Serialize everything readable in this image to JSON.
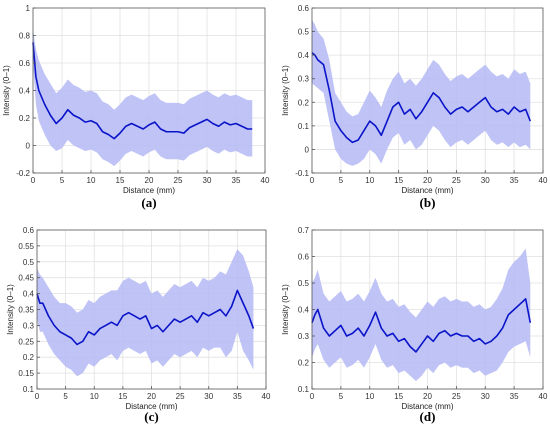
{
  "chart_data": [
    {
      "panel": "(a)",
      "type": "line",
      "xlabel": "Distance (mm)",
      "ylabel": "Intensity (0–1)",
      "xlim": [
        0,
        40
      ],
      "ylim": [
        -0.2,
        1
      ],
      "xticks": [
        "0",
        "5",
        "10",
        "15",
        "20",
        "25",
        "30",
        "35",
        "40"
      ],
      "yticks": [
        "-0.2",
        "0",
        "0.2",
        "0.4",
        "0.6",
        "0.8",
        "1"
      ],
      "grid": true,
      "x": [
        0,
        0.5,
        1,
        2,
        3,
        4,
        5,
        6,
        7,
        8,
        9,
        10,
        11,
        12,
        13,
        14,
        15,
        16,
        17,
        18,
        19,
        20,
        21,
        22,
        23,
        24,
        25,
        26,
        27,
        28,
        29,
        30,
        31,
        32,
        33,
        34,
        35,
        36,
        37,
        37.8
      ],
      "mean": [
        0.75,
        0.5,
        0.4,
        0.3,
        0.22,
        0.16,
        0.2,
        0.26,
        0.22,
        0.2,
        0.17,
        0.18,
        0.16,
        0.1,
        0.08,
        0.05,
        0.09,
        0.14,
        0.16,
        0.14,
        0.12,
        0.15,
        0.17,
        0.12,
        0.1,
        0.1,
        0.1,
        0.09,
        0.13,
        0.15,
        0.17,
        0.19,
        0.16,
        0.14,
        0.17,
        0.15,
        0.16,
        0.14,
        0.12,
        0.12
      ],
      "upper": [
        0.85,
        0.7,
        0.62,
        0.52,
        0.45,
        0.38,
        0.42,
        0.48,
        0.44,
        0.42,
        0.39,
        0.4,
        0.38,
        0.32,
        0.3,
        0.26,
        0.3,
        0.35,
        0.37,
        0.35,
        0.33,
        0.36,
        0.38,
        0.33,
        0.31,
        0.31,
        0.31,
        0.3,
        0.34,
        0.36,
        0.38,
        0.4,
        0.37,
        0.35,
        0.38,
        0.36,
        0.37,
        0.35,
        0.33,
        0.33
      ],
      "lower": [
        0.6,
        0.3,
        0.18,
        0.08,
        0.0,
        -0.04,
        -0.02,
        0.04,
        0.0,
        -0.02,
        -0.04,
        -0.03,
        -0.05,
        -0.1,
        -0.12,
        -0.15,
        -0.11,
        -0.06,
        -0.04,
        -0.06,
        -0.08,
        -0.05,
        -0.03,
        -0.08,
        -0.1,
        -0.1,
        -0.1,
        -0.11,
        -0.07,
        -0.05,
        -0.03,
        -0.01,
        -0.04,
        -0.06,
        -0.03,
        -0.05,
        -0.04,
        -0.06,
        -0.08,
        -0.08
      ]
    },
    {
      "panel": "(b)",
      "type": "line",
      "xlabel": "Distance (mm)",
      "ylabel": "Intensity (0–1)",
      "xlim": [
        0,
        40
      ],
      "ylim": [
        -0.1,
        0.6
      ],
      "xticks": [
        "0",
        "5",
        "10",
        "15",
        "20",
        "25",
        "30",
        "35",
        "40"
      ],
      "yticks": [
        "-0.1",
        "0",
        "0.1",
        "0.2",
        "0.3",
        "0.4",
        "0.5",
        "0.6"
      ],
      "grid": true,
      "x": [
        0,
        0.5,
        1,
        2,
        3,
        4,
        5,
        6,
        7,
        8,
        9,
        10,
        11,
        12,
        13,
        14,
        15,
        16,
        17,
        18,
        19,
        20,
        21,
        22,
        23,
        24,
        25,
        26,
        27,
        28,
        29,
        30,
        31,
        32,
        33,
        34,
        35,
        36,
        37,
        37.8
      ],
      "mean": [
        0.41,
        0.4,
        0.38,
        0.36,
        0.25,
        0.12,
        0.08,
        0.05,
        0.03,
        0.04,
        0.08,
        0.12,
        0.1,
        0.06,
        0.12,
        0.18,
        0.2,
        0.15,
        0.17,
        0.13,
        0.16,
        0.2,
        0.24,
        0.22,
        0.18,
        0.15,
        0.17,
        0.18,
        0.16,
        0.18,
        0.2,
        0.22,
        0.18,
        0.16,
        0.17,
        0.15,
        0.18,
        0.16,
        0.17,
        0.12
      ],
      "upper": [
        0.55,
        0.53,
        0.5,
        0.47,
        0.38,
        0.24,
        0.2,
        0.16,
        0.14,
        0.15,
        0.2,
        0.25,
        0.22,
        0.18,
        0.25,
        0.3,
        0.33,
        0.28,
        0.3,
        0.27,
        0.3,
        0.34,
        0.38,
        0.36,
        0.32,
        0.29,
        0.31,
        0.32,
        0.3,
        0.32,
        0.34,
        0.36,
        0.33,
        0.31,
        0.32,
        0.3,
        0.34,
        0.32,
        0.33,
        0.28
      ],
      "lower": [
        0.28,
        0.27,
        0.26,
        0.24,
        0.12,
        0.0,
        -0.04,
        -0.06,
        -0.07,
        -0.06,
        -0.04,
        0.0,
        -0.02,
        -0.06,
        0.0,
        0.05,
        0.07,
        0.02,
        0.04,
        0.0,
        0.02,
        0.06,
        0.1,
        0.08,
        0.04,
        0.01,
        0.03,
        0.04,
        0.02,
        0.04,
        0.06,
        0.08,
        0.04,
        0.02,
        0.03,
        0.01,
        0.03,
        0.01,
        0.02,
        0.0
      ]
    },
    {
      "panel": "(c)",
      "type": "line",
      "xlabel": "Distance (mm)",
      "ylabel": "Intensity (0–1)",
      "xlim": [
        0,
        40
      ],
      "ylim": [
        0.1,
        0.6
      ],
      "xticks": [
        "0",
        "5",
        "10",
        "15",
        "20",
        "25",
        "30",
        "35",
        "40"
      ],
      "yticks": [
        "0.1",
        "0.15",
        "0.2",
        "0.25",
        "0.3",
        "0.35",
        "0.4",
        "0.45",
        "0.5",
        "0.55",
        "0.6"
      ],
      "grid": true,
      "x": [
        0,
        0.5,
        1,
        2,
        3,
        4,
        5,
        6,
        7,
        8,
        9,
        10,
        11,
        12,
        13,
        14,
        15,
        16,
        17,
        18,
        19,
        20,
        21,
        22,
        23,
        24,
        25,
        26,
        27,
        28,
        29,
        30,
        31,
        32,
        33,
        34,
        35,
        36,
        37,
        37.8
      ],
      "mean": [
        0.4,
        0.37,
        0.37,
        0.33,
        0.3,
        0.28,
        0.27,
        0.26,
        0.24,
        0.25,
        0.28,
        0.27,
        0.29,
        0.3,
        0.31,
        0.3,
        0.33,
        0.34,
        0.33,
        0.32,
        0.33,
        0.29,
        0.3,
        0.28,
        0.3,
        0.32,
        0.31,
        0.32,
        0.33,
        0.31,
        0.34,
        0.33,
        0.34,
        0.35,
        0.33,
        0.36,
        0.41,
        0.37,
        0.33,
        0.29
      ],
      "upper": [
        0.48,
        0.46,
        0.45,
        0.42,
        0.39,
        0.37,
        0.37,
        0.36,
        0.34,
        0.35,
        0.38,
        0.37,
        0.39,
        0.4,
        0.41,
        0.41,
        0.44,
        0.45,
        0.44,
        0.43,
        0.44,
        0.4,
        0.41,
        0.39,
        0.41,
        0.43,
        0.42,
        0.43,
        0.44,
        0.42,
        0.45,
        0.44,
        0.45,
        0.47,
        0.46,
        0.5,
        0.54,
        0.52,
        0.47,
        0.42
      ],
      "lower": [
        0.32,
        0.28,
        0.28,
        0.24,
        0.21,
        0.19,
        0.17,
        0.16,
        0.14,
        0.15,
        0.18,
        0.17,
        0.19,
        0.2,
        0.21,
        0.19,
        0.22,
        0.23,
        0.22,
        0.21,
        0.22,
        0.18,
        0.19,
        0.17,
        0.19,
        0.21,
        0.2,
        0.21,
        0.22,
        0.2,
        0.23,
        0.22,
        0.23,
        0.23,
        0.2,
        0.22,
        0.28,
        0.22,
        0.19,
        0.16
      ]
    },
    {
      "panel": "(d)",
      "type": "line",
      "xlabel": "Distance (mm)",
      "ylabel": "Intensity (0–1)",
      "xlim": [
        0,
        40
      ],
      "ylim": [
        0.1,
        0.7
      ],
      "xticks": [
        "0",
        "5",
        "10",
        "15",
        "20",
        "25",
        "30",
        "35",
        "40"
      ],
      "yticks": [
        "0.1",
        "0.2",
        "0.3",
        "0.4",
        "0.5",
        "0.6",
        "0.7"
      ],
      "grid": true,
      "x": [
        0,
        0.5,
        1,
        2,
        3,
        4,
        5,
        6,
        7,
        8,
        9,
        10,
        11,
        12,
        13,
        14,
        15,
        16,
        17,
        18,
        19,
        20,
        21,
        22,
        23,
        24,
        25,
        26,
        27,
        28,
        29,
        30,
        31,
        32,
        33,
        34,
        35,
        36,
        37,
        37.8
      ],
      "mean": [
        0.35,
        0.38,
        0.4,
        0.33,
        0.3,
        0.32,
        0.34,
        0.3,
        0.31,
        0.33,
        0.3,
        0.34,
        0.39,
        0.33,
        0.3,
        0.31,
        0.28,
        0.29,
        0.26,
        0.24,
        0.27,
        0.3,
        0.28,
        0.31,
        0.32,
        0.3,
        0.31,
        0.3,
        0.3,
        0.28,
        0.29,
        0.27,
        0.28,
        0.3,
        0.33,
        0.38,
        0.4,
        0.42,
        0.44,
        0.35
      ],
      "upper": [
        0.5,
        0.52,
        0.55,
        0.46,
        0.43,
        0.45,
        0.47,
        0.43,
        0.44,
        0.46,
        0.43,
        0.47,
        0.52,
        0.46,
        0.43,
        0.44,
        0.41,
        0.42,
        0.39,
        0.37,
        0.4,
        0.43,
        0.41,
        0.44,
        0.45,
        0.43,
        0.44,
        0.43,
        0.43,
        0.41,
        0.42,
        0.4,
        0.41,
        0.44,
        0.48,
        0.55,
        0.58,
        0.6,
        0.63,
        0.5
      ],
      "lower": [
        0.22,
        0.25,
        0.27,
        0.21,
        0.18,
        0.2,
        0.22,
        0.18,
        0.19,
        0.21,
        0.18,
        0.22,
        0.27,
        0.21,
        0.18,
        0.19,
        0.16,
        0.17,
        0.15,
        0.13,
        0.15,
        0.18,
        0.16,
        0.19,
        0.2,
        0.18,
        0.19,
        0.18,
        0.18,
        0.16,
        0.17,
        0.15,
        0.16,
        0.17,
        0.2,
        0.24,
        0.26,
        0.27,
        0.28,
        0.22
      ]
    }
  ],
  "colors": {
    "mean_line": "#0a14c8",
    "band_fill": "#b4b8f4",
    "grid": "#e1e1e1",
    "axis": "#555555"
  }
}
